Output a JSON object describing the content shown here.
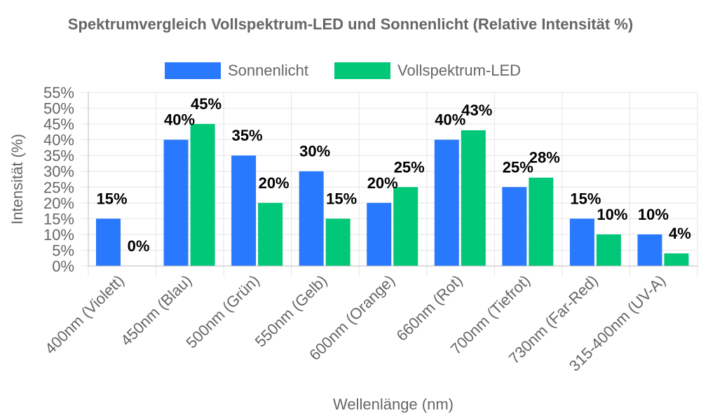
{
  "chart_data": {
    "type": "bar",
    "title": "Spektrumvergleich Vollspektrum-LED und Sonnenlicht (Relative Intensität %)",
    "xlabel": "Wellenlänge (nm)",
    "ylabel": "Intensität (%)",
    "ylim": [
      0,
      55
    ],
    "yticks": [
      0,
      5,
      10,
      15,
      20,
      25,
      30,
      35,
      40,
      45,
      50,
      55
    ],
    "ytick_labels": [
      "0%",
      "5%",
      "10%",
      "15%",
      "20%",
      "25%",
      "30%",
      "35%",
      "40%",
      "45%",
      "50%",
      "55%"
    ],
    "grid": true,
    "legend_position": "top",
    "categories": [
      "400nm (Violett)",
      "450nm (Blau)",
      "500nm (Grün)",
      "550nm (Gelb)",
      "600nm (Orange)",
      "660nm (Rot)",
      "700nm (Tiefrot)",
      "730nm (Far-Red)",
      "315-400nm (UV-A)"
    ],
    "series": [
      {
        "name": "Sonnenlicht",
        "color": "#2979ff",
        "values": [
          15,
          40,
          35,
          30,
          20,
          40,
          25,
          15,
          10
        ],
        "data_labels": [
          "15%",
          "40%",
          "35%",
          "30%",
          "20%",
          "40%",
          "25%",
          "15%",
          "10%"
        ]
      },
      {
        "name": "Vollspektrum-LED",
        "color": "#00c878",
        "values": [
          0,
          45,
          20,
          15,
          25,
          43,
          28,
          10,
          4
        ],
        "data_labels": [
          "0%",
          "45%",
          "20%",
          "15%",
          "25%",
          "43%",
          "28%",
          "10%",
          "4%"
        ]
      }
    ]
  }
}
